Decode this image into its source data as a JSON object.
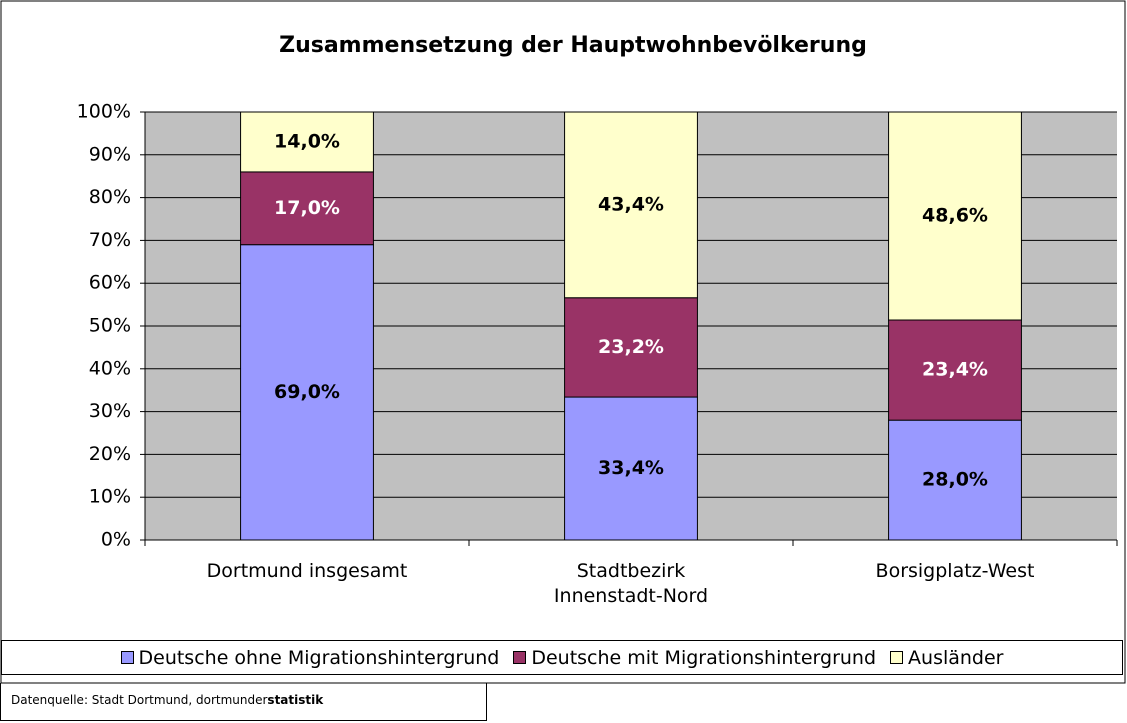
{
  "chart_data": {
    "type": "stacked_bar",
    "title": "Zusammensetzung der Hauptwohnbevölkerung",
    "categories": [
      "Dortmund insgesamt",
      "Stadtbezirk Innenstadt-Nord",
      "Borsigplatz-West"
    ],
    "series": [
      {
        "name": "Deutsche ohne Migrationshintergrund",
        "color": "#9999ff",
        "label_color": "#000000",
        "values": [
          69.0,
          33.4,
          28.0
        ],
        "value_labels": [
          "69,0%",
          "33,4%",
          "28,0%"
        ]
      },
      {
        "name": "Deutsche mit Migrationshintergrund",
        "color": "#993366",
        "label_color": "#ffffff",
        "values": [
          17.0,
          23.2,
          23.4
        ],
        "value_labels": [
          "17,0%",
          "23,2%",
          "23,4%"
        ]
      },
      {
        "name": "Ausländer",
        "color": "#ffffcc",
        "label_color": "#000000",
        "values": [
          14.0,
          43.4,
          48.6
        ],
        "value_labels": [
          "14,0%",
          "43,4%",
          "48,6%"
        ]
      }
    ],
    "ylim": [
      0,
      100
    ],
    "yticks": [
      {
        "value": 0,
        "label": "0%"
      },
      {
        "value": 10,
        "label": "10%"
      },
      {
        "value": 20,
        "label": "20%"
      },
      {
        "value": 30,
        "label": "30%"
      },
      {
        "value": 40,
        "label": "40%"
      },
      {
        "value": 50,
        "label": "50%"
      },
      {
        "value": 60,
        "label": "60%"
      },
      {
        "value": 70,
        "label": "70%"
      },
      {
        "value": 80,
        "label": "80%"
      },
      {
        "value": 90,
        "label": "90%"
      },
      {
        "value": 100,
        "label": "100%"
      }
    ],
    "grid": true,
    "plot_background": "#c0c0c0",
    "legend": "bottom"
  },
  "source": {
    "text": "Datenquelle: Stadt Dortmund, dortmunder",
    "bold": "statistik"
  }
}
